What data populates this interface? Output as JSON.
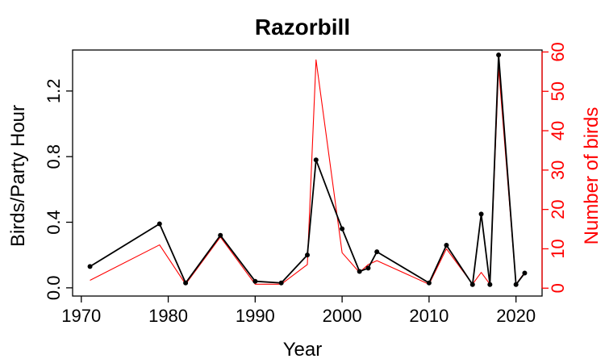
{
  "chart_data": {
    "type": "line",
    "title": "Razorbill",
    "xlabel": "Year",
    "ylabel": "Birds/Party Hour",
    "ylabel_right": "Number of birds",
    "xlim": [
      1969,
      2023
    ],
    "ylim": [
      -0.05,
      1.45
    ],
    "ylim_right": [
      -2,
      60.5
    ],
    "x_ticks": [
      1970,
      1980,
      1990,
      2000,
      2010,
      2020
    ],
    "y_ticks": [
      0.0,
      0.4,
      0.8,
      1.2
    ],
    "y_tick_labels": [
      "0.0",
      "0.4",
      "0.8",
      "1.2"
    ],
    "y_right_ticks": [
      0,
      10,
      20,
      30,
      40,
      50,
      60
    ],
    "grid": false,
    "series": [
      {
        "axis": "left",
        "color": "#000000",
        "markers": true,
        "points": [
          [
            1971,
            0.13
          ],
          [
            1979,
            0.39
          ],
          [
            1982,
            0.03
          ],
          [
            1986,
            0.32
          ],
          [
            1990,
            0.04
          ],
          [
            1993,
            0.03
          ],
          [
            1996,
            0.2
          ],
          [
            1997,
            0.78
          ],
          [
            2000,
            0.36
          ],
          [
            2002,
            0.1
          ],
          [
            2003,
            0.12
          ],
          [
            2004,
            0.22
          ],
          [
            2010,
            0.03
          ],
          [
            2012,
            0.26
          ],
          [
            2015,
            0.02
          ],
          [
            2016,
            0.45
          ],
          [
            2017,
            0.02
          ],
          [
            2018,
            1.42
          ],
          [
            2020,
            0.02
          ],
          [
            2021,
            0.09
          ]
        ]
      },
      {
        "axis": "right",
        "color": "#ff0000",
        "markers": false,
        "points": [
          [
            1971,
            2
          ],
          [
            1979,
            11
          ],
          [
            1982,
            1
          ],
          [
            1986,
            13
          ],
          [
            1990,
            1
          ],
          [
            1993,
            1
          ],
          [
            1996,
            6
          ],
          [
            1997,
            58
          ],
          [
            2000,
            9
          ],
          [
            2002,
            4
          ],
          [
            2003,
            6
          ],
          [
            2004,
            7
          ],
          [
            2010,
            1
          ],
          [
            2012,
            10
          ],
          [
            2015,
            1
          ],
          [
            2016,
            4
          ],
          [
            2017,
            1
          ],
          [
            2018,
            56
          ],
          [
            2020,
            1
          ],
          [
            2021,
            4
          ]
        ]
      }
    ]
  }
}
